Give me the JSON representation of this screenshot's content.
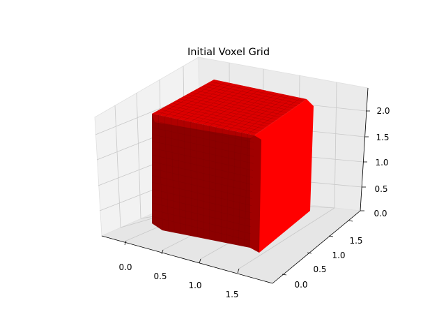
{
  "chart_data": {
    "type": "voxel",
    "title": "Initial Voxel Grid",
    "xlabel": "",
    "ylabel": "",
    "zlabel": "",
    "x_ticks": [
      "0.0",
      "0.5",
      "1.0",
      "1.5"
    ],
    "y_ticks": [
      "0.0",
      "0.5",
      "1.0",
      "1.5"
    ],
    "z_ticks": [
      "0.0",
      "0.5",
      "1.0",
      "1.5",
      "2.0"
    ],
    "xlim": [
      -0.3,
      1.9
    ],
    "ylim": [
      -0.3,
      1.9
    ],
    "zlim": [
      0,
      2.2
    ],
    "grid": true,
    "voxels": {
      "shape": "solid cube",
      "x_extent": [
        0,
        1.9
      ],
      "y_extent": [
        0,
        1.9
      ],
      "z_extent": [
        0,
        2.2
      ],
      "color": "#ff0000"
    },
    "colors": {
      "voxel_top": "#dd0000",
      "voxel_front": "#8c0000",
      "voxel_side": "#ff0000",
      "pane": "#f2f2f2",
      "grid": "#c8c8c8"
    }
  }
}
